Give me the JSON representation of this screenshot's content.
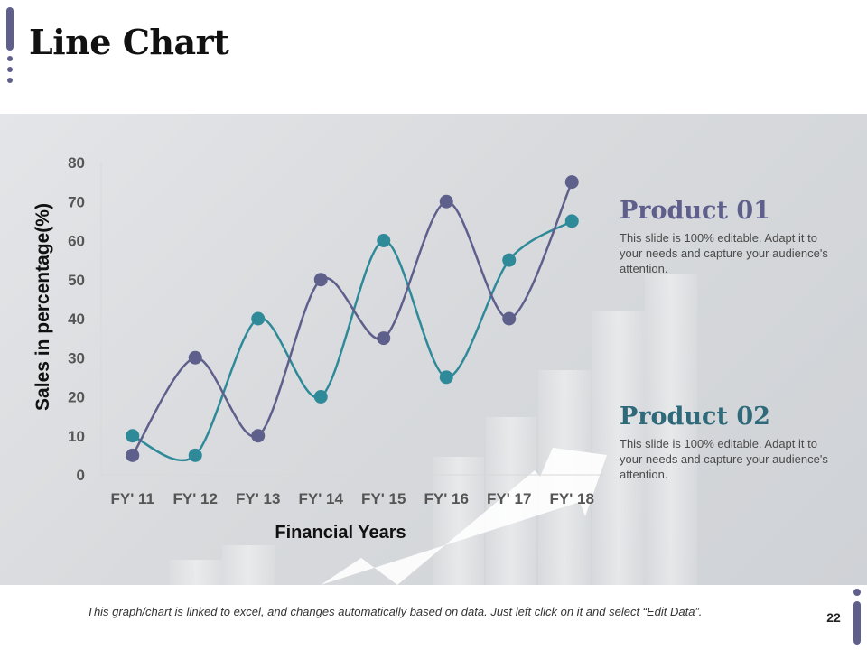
{
  "slide": {
    "title": "Line Chart",
    "page_number": "22",
    "footer_note": "This graph/chart is linked to excel, and changes automatically based on data. Just left click on it and select “Edit Data”."
  },
  "products": [
    {
      "name": "Product 01",
      "description": "This slide is 100% editable. Adapt it to your needs and capture your audience's attention."
    },
    {
      "name": "Product 02",
      "description": "This slide is 100% editable. Adapt it to your needs and capture your audience's attention."
    }
  ],
  "colors": {
    "product1": "#5f5f8c",
    "product2": "#2e8a99",
    "accent": "#5f5f8c"
  },
  "chart_data": {
    "type": "line",
    "title": "Line Chart",
    "xlabel": "Financial Years",
    "ylabel": "Sales in percentage(%)",
    "ylim": [
      0,
      80
    ],
    "yticks": [
      0,
      10,
      20,
      30,
      40,
      50,
      60,
      70,
      80
    ],
    "categories": [
      "FY' 11",
      "FY' 12",
      "FY' 13",
      "FY' 14",
      "FY' 15",
      "FY' 16",
      "FY' 17",
      "FY' 18"
    ],
    "smooth": true,
    "series": [
      {
        "name": "Product 01",
        "values": [
          5,
          30,
          10,
          50,
          35,
          70,
          40,
          75
        ]
      },
      {
        "name": "Product 02",
        "values": [
          10,
          5,
          40,
          20,
          60,
          25,
          55,
          65
        ]
      }
    ]
  }
}
